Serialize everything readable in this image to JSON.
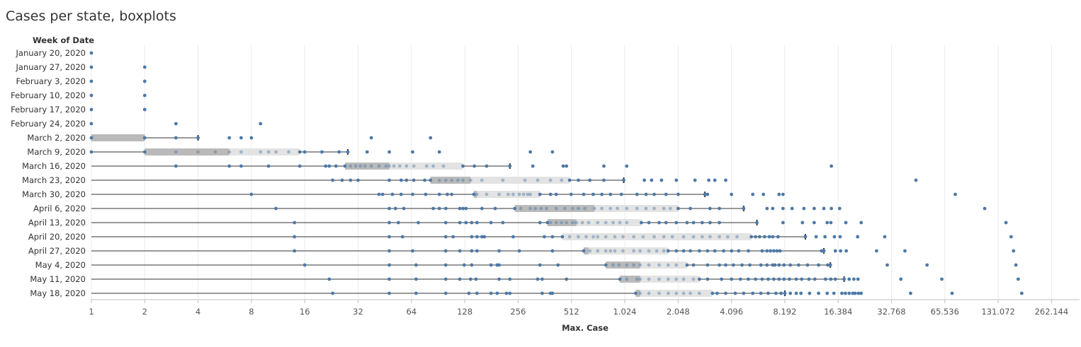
{
  "chart_data": {
    "type": "boxplot",
    "title": "Cases per state, boxplots",
    "row_header": "Week of Date",
    "xlabel": "Max. Case",
    "x_scale": "log2",
    "xlim": [
      1,
      262144
    ],
    "x_ticks": [
      1,
      2,
      4,
      8,
      16,
      32,
      64,
      128,
      256,
      512,
      1024,
      2048,
      4096,
      8192,
      16384,
      32768,
      65536,
      131072,
      262144
    ],
    "x_tick_labels": [
      "1",
      "2",
      "4",
      "8",
      "16",
      "32",
      "64",
      "128",
      "256",
      "512",
      "1.024",
      "2.048",
      "4.096",
      "8.192",
      "16.384",
      "32.768",
      "65.536",
      "131.072",
      "262.144"
    ],
    "colors": {
      "point": "#4e79a7",
      "lower_box": "#bababa",
      "upper_box": "#e3e3e3",
      "whisker": "#333333",
      "grid": "#ebebeb",
      "axis": "#bfbfbf"
    },
    "weeks": [
      {
        "label": "January 20, 2020",
        "points": [
          1
        ]
      },
      {
        "label": "January 27, 2020",
        "points": [
          1,
          2
        ]
      },
      {
        "label": "February 3, 2020",
        "points": [
          1,
          2
        ]
      },
      {
        "label": "February 10, 2020",
        "points": [
          1,
          2
        ]
      },
      {
        "label": "February 17, 2020",
        "points": [
          1,
          2
        ]
      },
      {
        "label": "February 24, 2020",
        "points": [
          1,
          3,
          9
        ]
      },
      {
        "label": "March 2, 2020",
        "box": {
          "min": 1,
          "q1": 1,
          "median": 2,
          "q3": 2,
          "max": 4
        },
        "points": [
          1,
          2,
          3,
          4,
          6,
          7,
          8,
          38,
          82
        ]
      },
      {
        "label": "March 9, 2020",
        "box": {
          "min": 1,
          "q1": 2,
          "median": 6,
          "q3": 15,
          "max": 28
        },
        "points": [
          1,
          2,
          3,
          4,
          5,
          6,
          7,
          9,
          10,
          11,
          13,
          15,
          16,
          20,
          25,
          28,
          36,
          48,
          65,
          92,
          300,
          400
        ]
      },
      {
        "label": "March 16, 2020",
        "box": {
          "min": 1,
          "q1": 27,
          "median": 48,
          "q3": 125,
          "max": 230
        },
        "points": [
          3,
          6,
          7,
          10,
          15,
          21,
          22,
          24,
          27,
          29,
          31,
          33,
          35,
          38,
          42,
          46,
          48,
          51,
          55,
          60,
          66,
          78,
          85,
          97,
          125,
          145,
          170,
          230,
          310,
          460,
          480,
          780,
          1050,
          15000
        ]
      },
      {
        "label": "March 23, 2020",
        "box": {
          "min": 1,
          "q1": 82,
          "median": 138,
          "q3": 500,
          "max": 1010
        },
        "points": [
          23,
          26,
          29,
          32,
          48,
          56,
          60,
          66,
          76,
          82,
          92,
          100,
          108,
          117,
          125,
          138,
          160,
          210,
          280,
          330,
          390,
          450,
          500,
          560,
          650,
          780,
          1010,
          1320,
          1450,
          1650,
          2000,
          2550,
          3050,
          3300,
          3800,
          45000
        ]
      },
      {
        "label": "March 30, 2020",
        "box": {
          "min": 1,
          "q1": 144,
          "median": 150,
          "q3": 340,
          "max": 2900
        },
        "points": [
          8,
          42,
          44,
          50,
          56,
          65,
          77,
          92,
          102,
          108,
          144,
          150,
          170,
          200,
          225,
          240,
          260,
          275,
          290,
          300,
          340,
          390,
          420,
          510,
          600,
          680,
          760,
          850,
          980,
          1200,
          1350,
          1500,
          1750,
          2050,
          2900,
          3000,
          4096,
          5400,
          6200,
          7600,
          8000,
          75000
        ]
      },
      {
        "label": "April 6, 2020",
        "box": {
          "min": 1,
          "q1": 245,
          "median": 690,
          "q3": 2050,
          "max": 4800
        },
        "points": [
          11,
          48,
          52,
          58,
          85,
          92,
          100,
          120,
          125,
          130,
          160,
          190,
          245,
          265,
          300,
          320,
          345,
          370,
          420,
          470,
          520,
          560,
          610,
          690,
          760,
          850,
          930,
          1050,
          1200,
          1350,
          1500,
          1700,
          1850,
          2050,
          2400,
          3100,
          3500,
          4800,
          6500,
          7000,
          8000,
          9000,
          10500,
          12000,
          13600,
          15000,
          16700,
          110000
        ]
      },
      {
        "label": "April 13, 2020",
        "box": {
          "min": 1,
          "q1": 375,
          "median": 545,
          "q3": 1270,
          "max": 5700
        },
        "points": [
          14,
          48,
          54,
          70,
          100,
          120,
          130,
          140,
          150,
          180,
          210,
          340,
          375,
          390,
          420,
          450,
          480,
          520,
          545,
          590,
          640,
          720,
          800,
          880,
          960,
          1050,
          1270,
          1400,
          1600,
          1750,
          2000,
          2300,
          2500,
          2800,
          3100,
          3500,
          5700,
          8000,
          10300,
          12000,
          14200,
          14900,
          18100,
          22100,
          145000
        ]
      },
      {
        "label": "April 20, 2020",
        "box": {
          "min": 1,
          "q1": 455,
          "median": 455,
          "q3": 5300,
          "max": 10700
        },
        "points": [
          14,
          48,
          57,
          100,
          110,
          140,
          150,
          160,
          165,
          240,
          360,
          400,
          455,
          500,
          560,
          620,
          680,
          720,
          800,
          900,
          1000,
          1150,
          1300,
          1500,
          1700,
          1900,
          2200,
          2500,
          2800,
          3100,
          3500,
          3900,
          4400,
          5300,
          5600,
          5900,
          6300,
          6700,
          7000,
          7500,
          10700,
          12300,
          13800,
          15600,
          16800,
          21100,
          30000,
          155000
        ]
      },
      {
        "label": "April 27, 2020",
        "box": {
          "min": 1,
          "q1": 600,
          "median": 640,
          "q3": 1800,
          "max": 13600
        },
        "points": [
          14,
          48,
          65,
          100,
          120,
          140,
          150,
          200,
          260,
          400,
          600,
          650,
          720,
          800,
          850,
          900,
          1000,
          1150,
          1250,
          1400,
          1550,
          1700,
          1800,
          2000,
          2200,
          2400,
          2700,
          3000,
          3300,
          3700,
          4100,
          4500,
          5100,
          6100,
          6500,
          6800,
          7100,
          7400,
          7700,
          13200,
          13600,
          15800,
          16900,
          18200,
          27000,
          39000,
          160000
        ]
      },
      {
        "label": "May 4, 2020",
        "box": {
          "min": 1,
          "q1": 800,
          "median": 1250,
          "q3": 2300,
          "max": 14800
        },
        "points": [
          16,
          48,
          68,
          100,
          127,
          140,
          180,
          195,
          200,
          340,
          430,
          800,
          880,
          950,
          1050,
          1150,
          1250,
          1400,
          1600,
          1800,
          2000,
          2300,
          2500,
          3000,
          3500,
          3800,
          4200,
          4700,
          5200,
          6000,
          6500,
          7000,
          7200,
          7600,
          8100,
          8800,
          9800,
          11000,
          12700,
          14300,
          14800,
          31000,
          52000,
          165000
        ]
      },
      {
        "label": "May 11, 2020",
        "box": {
          "min": 1,
          "q1": 960,
          "median": 1250,
          "q3": 2700,
          "max": 17700
        },
        "points": [
          22,
          48,
          68,
          100,
          120,
          138,
          148,
          200,
          230,
          330,
          350,
          480,
          960,
          1050,
          1200,
          1250,
          1400,
          1600,
          1800,
          2000,
          2200,
          2500,
          2700,
          3000,
          3600,
          4100,
          4600,
          5100,
          5600,
          6100,
          6600,
          7100,
          7600,
          8100,
          8700,
          9500,
          10200,
          11200,
          12100,
          13900,
          14900,
          15800,
          17700,
          18900,
          20100,
          21200,
          37000,
          63000,
          170000
        ]
      },
      {
        "label": "May 18, 2020",
        "box": {
          "min": 1,
          "q1": 1180,
          "median": 1250,
          "q3": 3200,
          "max": 8200
        },
        "points": [
          23,
          48,
          68,
          100,
          135,
          150,
          180,
          195,
          220,
          230,
          350,
          390,
          400,
          1180,
          1250,
          1400,
          1600,
          1800,
          2000,
          2200,
          2400,
          2700,
          3200,
          3400,
          3800,
          4300,
          4800,
          5400,
          6000,
          6600,
          7300,
          7800,
          8200,
          8800,
          9500,
          10100,
          11300,
          12700,
          14200,
          15500,
          17200,
          18000,
          18900,
          19800,
          20400,
          21300,
          22100,
          42000,
          72000,
          178000
        ]
      }
    ]
  }
}
